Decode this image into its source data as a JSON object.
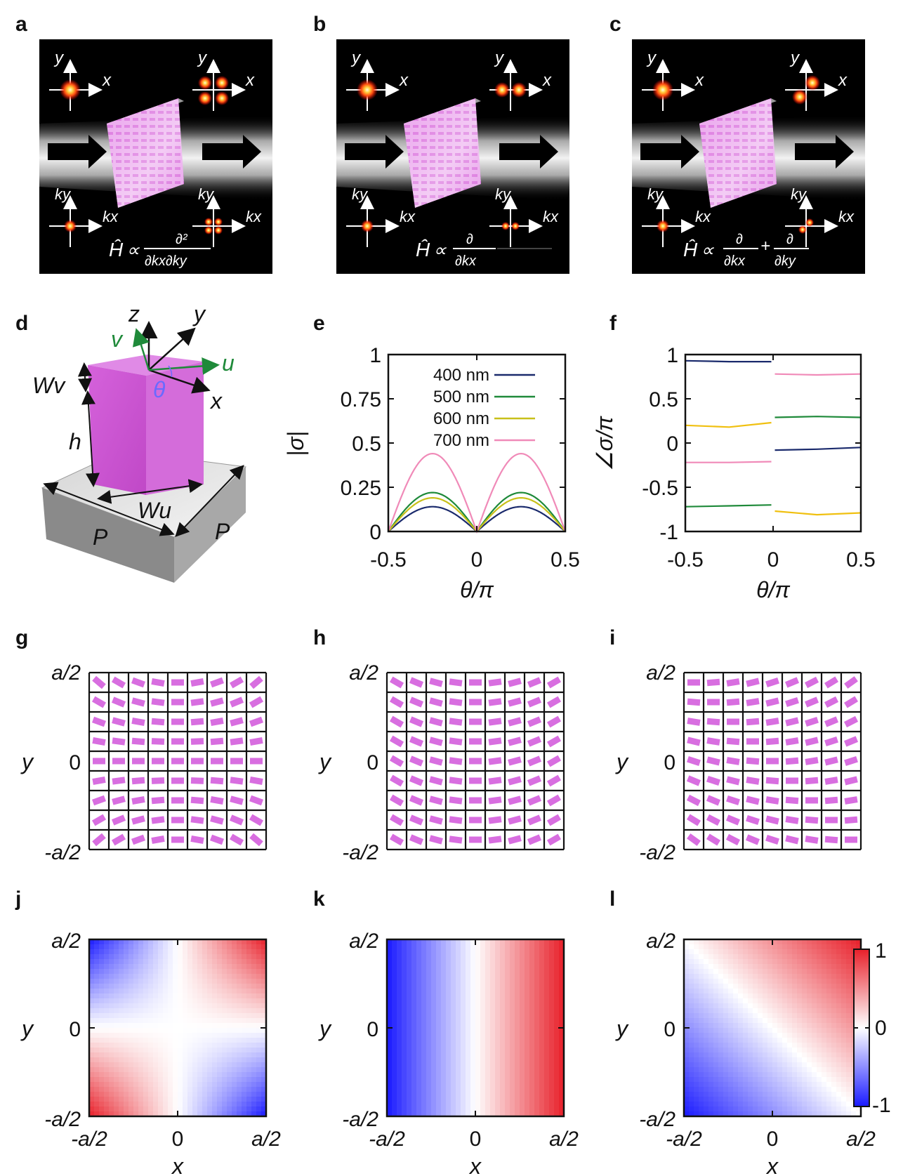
{
  "panels": {
    "a": "a",
    "b": "b",
    "c": "c",
    "d": "d",
    "e": "e",
    "f": "f",
    "g": "g",
    "h": "h",
    "i": "i",
    "j": "j",
    "k": "k",
    "l": "l"
  },
  "schematic": {
    "axis_x": "x",
    "axis_y": "y",
    "axis_kx": "kx",
    "axis_ky": "ky",
    "formula_a": "Ĥ ∝ ∂²/∂kx∂ky",
    "formula_b": "Ĥ ∝ ∂/∂kx",
    "formula_c": "Ĥ ∝ ∂/∂kx + ∂/∂ky",
    "H": "Ĥ",
    "prop": "∝",
    "d2": "∂²",
    "d": "∂",
    "plus": "+",
    "dkxdky": "∂kx∂ky",
    "dkx": "∂kx",
    "dky": "∂ky"
  },
  "pillar": {
    "z": "z",
    "y": "y",
    "x": "x",
    "v": "v",
    "u": "u",
    "theta": "θ",
    "Wv": "Wv",
    "h": "h",
    "Wu": "Wu",
    "P1": "P",
    "P2": "P",
    "colors": {
      "pillar": "#d86ee0",
      "substrate": "#b8b8b8"
    }
  },
  "chart_data": [
    {
      "id": "e",
      "type": "line",
      "title": "",
      "xlabel": "θ/π",
      "ylabel": "|σ|",
      "xlim": [
        -0.5,
        0.5
      ],
      "ylim": [
        0,
        1
      ],
      "xticks": [
        "-0.5",
        "0",
        "0.5"
      ],
      "yticks": [
        "0",
        "0.25",
        "0.5",
        "0.75",
        "1"
      ],
      "legend_position": "top-center",
      "series": [
        {
          "name": "400 nm",
          "color": "#1a2a6c",
          "amplitude": 0.14
        },
        {
          "name": "500 nm",
          "color": "#1f8a3a",
          "amplitude": 0.22
        },
        {
          "name": "600 nm",
          "color": "#c8c01a",
          "amplitude": 0.19
        },
        {
          "name": "700 nm",
          "color": "#f08ab8",
          "amplitude": 0.44
        }
      ],
      "shape": "amplitude × |sin(2θ)|"
    },
    {
      "id": "f",
      "type": "line",
      "title": "",
      "xlabel": "θ/π",
      "ylabel": "∠σ/π",
      "xlim": [
        -0.5,
        0.5
      ],
      "ylim": [
        -1,
        1
      ],
      "xticks": [
        "-0.5",
        "0",
        "0.5"
      ],
      "yticks": [
        "-1",
        "-0.5",
        "0",
        "0.5",
        "1"
      ],
      "series": [
        {
          "name": "400 nm",
          "color": "#1a2a6c",
          "x": [
            -0.5,
            -0.25,
            -0.01,
            0.01,
            0.25,
            0.5
          ],
          "y": [
            0.93,
            0.92,
            0.92,
            -0.08,
            -0.07,
            -0.05
          ]
        },
        {
          "name": "500 nm",
          "color": "#1f8a3a",
          "x": [
            -0.5,
            -0.25,
            -0.01,
            0.01,
            0.25,
            0.5
          ],
          "y": [
            -0.72,
            -0.71,
            -0.7,
            0.29,
            0.3,
            0.29
          ]
        },
        {
          "name": "600 nm",
          "color": "#f0c010",
          "x": [
            -0.5,
            -0.25,
            -0.01,
            0.01,
            0.25,
            0.5
          ],
          "y": [
            0.2,
            0.18,
            0.23,
            -0.77,
            -0.81,
            -0.79
          ]
        },
        {
          "name": "700 nm",
          "color": "#f08ab8",
          "x": [
            -0.5,
            -0.25,
            -0.01,
            0.01,
            0.25,
            0.5
          ],
          "y": [
            -0.22,
            -0.22,
            -0.21,
            0.78,
            0.77,
            0.78
          ]
        }
      ]
    },
    {
      "id": "j",
      "type": "heatmap",
      "function": "x*y",
      "xlabel": "x",
      "ylabel": "y",
      "xticks": [
        "-a/2",
        "0",
        "a/2"
      ],
      "yticks": [
        "-a/2",
        "0",
        "a/2"
      ],
      "range": [
        -1,
        1
      ]
    },
    {
      "id": "k",
      "type": "heatmap",
      "function": "x",
      "xlabel": "x",
      "ylabel": "y",
      "xticks": [
        "-a/2",
        "0",
        "a/2"
      ],
      "yticks": [
        "-a/2",
        "0",
        "a/2"
      ],
      "range": [
        -1,
        1
      ]
    },
    {
      "id": "l",
      "type": "heatmap",
      "function": "x+y",
      "xlabel": "x",
      "ylabel": "y",
      "xticks": [
        "-a/2",
        "0",
        "a/2"
      ],
      "yticks": [
        "-a/2",
        "0",
        "a/2"
      ],
      "range": [
        -1,
        1
      ],
      "colorbar": {
        "max": "1",
        "mid": "0",
        "min": "-1"
      }
    }
  ],
  "grids": {
    "n": 9,
    "yticks": [
      "a/2",
      "0",
      "-a/2"
    ],
    "ylabel": "y",
    "g_mode": "xy",
    "h_mode": "x",
    "i_mode": "xplusy",
    "color": "#d86ee0"
  },
  "colors": {
    "red": "#e8202a",
    "blue": "#1a1aff",
    "pink": "#d86ee0"
  }
}
